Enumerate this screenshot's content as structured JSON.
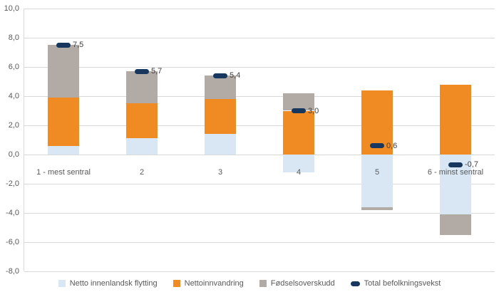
{
  "chart_data": {
    "type": "bar",
    "stacked": true,
    "title": "",
    "xlabel": "",
    "ylabel": "",
    "categories": [
      "1 - mest sentral",
      "2",
      "3",
      "4",
      "5",
      "6 - minst sentral"
    ],
    "series": [
      {
        "name": "Netto innenlandsk flytting",
        "color": "#d9e7f5",
        "values": [
          0.6,
          1.1,
          1.4,
          -1.2,
          -3.6,
          -4.1
        ]
      },
      {
        "name": "Nettoinnvandring",
        "color": "#ef8b22",
        "values": [
          3.3,
          2.4,
          2.4,
          3.0,
          4.4,
          4.8
        ]
      },
      {
        "name": "Fødselsoverskudd",
        "color": "#b1aaa5",
        "values": [
          3.6,
          2.2,
          1.6,
          1.2,
          -0.2,
          -1.4
        ]
      }
    ],
    "totals": {
      "name": "Total befolkningsvekst",
      "color": "#17375e",
      "values": [
        7.5,
        5.7,
        5.4,
        3.0,
        0.6,
        -0.7
      ],
      "labels": [
        "7,5",
        "5,7",
        "5,4",
        "3,0",
        "0,6",
        "-0,7"
      ]
    },
    "ylim": [
      -8,
      10
    ],
    "ytick_step": 2,
    "ytick_labels": [
      "10,0",
      "8,0",
      "6,0",
      "4,0",
      "2,0",
      "0,0",
      "-2,0",
      "-4,0",
      "-6,0",
      "-8,0"
    ],
    "grid": true,
    "legend_position": "bottom",
    "gridline_color": "#d9d9d9",
    "text_color": "#595959"
  }
}
